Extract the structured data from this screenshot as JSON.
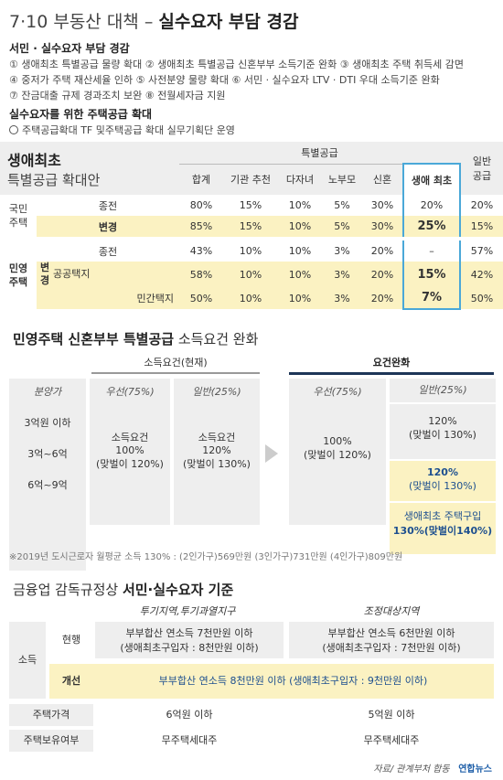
{
  "header": {
    "title_light": "7·10 부동산 대책 – ",
    "title_bold": "실수요자 부담 경감"
  },
  "box1": {
    "heading": "서민 · 실수요자 부담 경감",
    "lines": [
      "① 생애최초 특별공급 물량 확대  ② 생애최초 특별공급 신혼부부 소득기준 완화 ③ 생애최초 주택 취득세 감면",
      "④ 중저가 주택 재산세율 인하 ⑤ 사전분양 물량 확대 ⑥ 서민 · 실수요자 LTV · DTI 우대 소득기준 완화",
      "⑦ 잔금대출 규제 경과조치 보완 ⑧ 전월세자금 지원"
    ]
  },
  "box2": {
    "heading": "실수요자를 위한 주택공급 확대",
    "line": "주택공급확대 TF 및주택공급 확대 실무기획단 운영"
  },
  "sec1": {
    "title1": "생애최초",
    "title2": "특별공급 확대안",
    "special": "특별공급",
    "general": "일반\n공급",
    "cols": [
      "합계",
      "기관 추천",
      "다자녀",
      "노부모",
      "신혼",
      "생애 최초"
    ],
    "national": "국민\n주택",
    "private": "민영\n주택",
    "change_v": "변\n경",
    "rows": [
      {
        "label": "종전",
        "vals": [
          "80%",
          "15%",
          "10%",
          "5%",
          "30%",
          "20%"
        ],
        "gen": "20%"
      },
      {
        "label": "변경",
        "vals": [
          "85%",
          "15%",
          "10%",
          "5%",
          "30%",
          "25%"
        ],
        "gen": "15%"
      },
      {
        "label": "종전",
        "vals": [
          "43%",
          "10%",
          "10%",
          "3%",
          "20%",
          "–"
        ],
        "gen": "57%"
      },
      {
        "label": "공공택지",
        "vals": [
          "58%",
          "10%",
          "10%",
          "3%",
          "20%",
          "15%"
        ],
        "gen": "42%"
      },
      {
        "label": "민간택지",
        "vals": [
          "50%",
          "10%",
          "10%",
          "3%",
          "20%",
          "7%"
        ],
        "gen": "50%"
      }
    ]
  },
  "sec2": {
    "title_bold": "민영주택 신혼부부 특별공급",
    "title_rest": " 소득요건 완화",
    "current": "소득요건(현재)",
    "relaxed": "요건완화",
    "sale": "분양가",
    "prio": "우선(75%)",
    "gen": "일반(25%)",
    "prices": [
      "3억원 이하",
      "3억~6억",
      "6억~9억"
    ],
    "cur_prio": [
      "소득요건",
      "100%",
      "(맞벌이 120%)"
    ],
    "cur_gen": [
      "소득요건",
      "120%",
      "(맞벌이 130%)"
    ],
    "new_prio": [
      "100%",
      "(맞벌이 120%)"
    ],
    "new_gen1": [
      "120%",
      "(맞벌이 130%)"
    ],
    "new_gen2": [
      "120%",
      "(맞벌이 130%)"
    ],
    "new_gen3": [
      "생애최초 주택구입",
      "130%",
      "(맞벌이140%)"
    ],
    "note": "※2019년 도시근로자 월평균 소득 130% : (2인가구)569만원 (3인가구)731만원 (4인가구)809만원"
  },
  "sec3": {
    "title_light": "금융업 감독규정상 ",
    "title_bold": "서민·실수요자 기준",
    "zone1": "투기지역,투기과열지구",
    "zone2": "조정대상지역",
    "income": "소득",
    "current": "현행",
    "improve": "개선",
    "cur1a": "부부합산 연소득 7천만원 이하",
    "cur1b": "(생애최초구입자 : 8천만원 이하)",
    "cur2a": "부부합산 연소득 6천만원 이하",
    "cur2b": "(생애최초구입자 : 7천만원 이하)",
    "imp": "부부합산 연소득 8천만원 이하 (생애최초구입자 : 9천만원 이하)",
    "price": "주택가격",
    "price1": "6억원 이하",
    "price2": "5억원 이하",
    "own": "주택보유여부",
    "own1": "무주택세대주",
    "own2": "무주택세대주"
  },
  "footer": {
    "source": "자료/ 관계부처 합동",
    "logo": "연합뉴스"
  }
}
